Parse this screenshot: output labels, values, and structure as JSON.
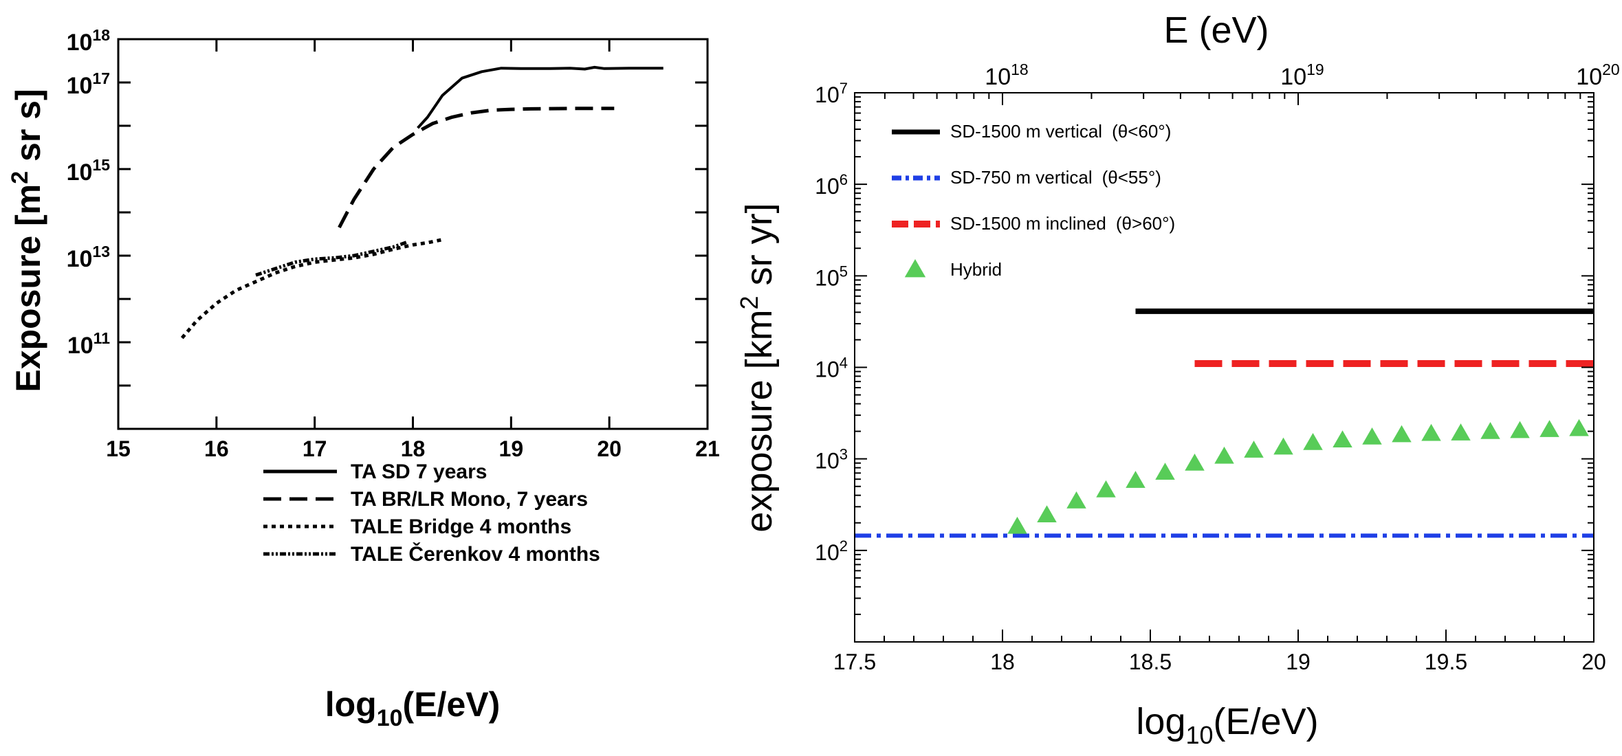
{
  "chart_data": [
    {
      "type": "line",
      "xlabel": "log",
      "xlabel_sub": "10",
      "xlabel_tail": "(E/eV)",
      "ylabel": "Exposure [m",
      "ylabel_sup": "2",
      "ylabel_tail": " sr s]",
      "x_scale": "linear",
      "y_scale": "log",
      "xlim": [
        15,
        21
      ],
      "ylim_exp": [
        9,
        18
      ],
      "x_ticks": [
        "15",
        "16",
        "17",
        "18",
        "19",
        "20",
        "21"
      ],
      "y_tick_labels": [
        {
          "exp": 18,
          "base": "10",
          "sup": "18"
        },
        {
          "exp": 17,
          "base": "10",
          "sup": "17"
        },
        {
          "exp": 15,
          "base": "10",
          "sup": "15"
        },
        {
          "exp": 13,
          "base": "10",
          "sup": "13"
        },
        {
          "exp": 11,
          "base": "10",
          "sup": "11"
        }
      ],
      "legend_position": "bottom-right",
      "series": [
        {
          "name": "TA SD 7 years",
          "style": "solid",
          "points": [
            [
              18.05,
              15.95
            ],
            [
              18.15,
              16.2
            ],
            [
              18.3,
              16.7
            ],
            [
              18.5,
              17.1
            ],
            [
              18.7,
              17.25
            ],
            [
              18.9,
              17.33
            ],
            [
              19.1,
              17.32
            ],
            [
              19.4,
              17.32
            ],
            [
              19.6,
              17.33
            ],
            [
              19.75,
              17.31
            ],
            [
              19.85,
              17.35
            ],
            [
              19.95,
              17.32
            ],
            [
              20.2,
              17.33
            ],
            [
              20.55,
              17.33
            ]
          ]
        },
        {
          "name": "TA BR/LR Mono, 7 years",
          "style": "dashed",
          "points": [
            [
              17.25,
              13.65
            ],
            [
              17.4,
              14.3
            ],
            [
              17.6,
              15.0
            ],
            [
              17.8,
              15.5
            ],
            [
              18.0,
              15.8
            ],
            [
              18.2,
              16.05
            ],
            [
              18.4,
              16.2
            ],
            [
              18.6,
              16.3
            ],
            [
              18.8,
              16.36
            ],
            [
              19.0,
              16.38
            ],
            [
              19.2,
              16.39
            ],
            [
              19.6,
              16.4
            ],
            [
              20.05,
              16.4
            ]
          ]
        },
        {
          "name": "TALE Bridge 4 months",
          "style": "dotted",
          "points": [
            [
              15.65,
              11.1
            ],
            [
              15.8,
              11.5
            ],
            [
              16.0,
              11.9
            ],
            [
              16.2,
              12.2
            ],
            [
              16.4,
              12.4
            ],
            [
              16.6,
              12.6
            ],
            [
              16.8,
              12.75
            ],
            [
              17.0,
              12.85
            ],
            [
              17.2,
              12.9
            ],
            [
              17.4,
              12.95
            ],
            [
              17.6,
              13.03
            ],
            [
              17.8,
              13.15
            ],
            [
              18.0,
              13.25
            ],
            [
              18.15,
              13.3
            ],
            [
              18.3,
              13.37
            ]
          ]
        },
        {
          "name": "TALE  Čerenkov 4 months",
          "style": "dash-dot-dot",
          "points": [
            [
              16.4,
              12.55
            ],
            [
              16.6,
              12.7
            ],
            [
              16.8,
              12.85
            ],
            [
              17.0,
              12.92
            ],
            [
              17.2,
              12.95
            ],
            [
              17.4,
              13.0
            ],
            [
              17.6,
              13.1
            ],
            [
              17.8,
              13.2
            ],
            [
              17.95,
              13.32
            ]
          ]
        }
      ]
    },
    {
      "type": "line",
      "top_axis_label": "E (eV)",
      "top_ticks": [
        {
          "at": 18,
          "base": "10",
          "sup": "18"
        },
        {
          "at": 19,
          "base": "10",
          "sup": "19"
        },
        {
          "at": 20,
          "base": "10",
          "sup": "20"
        }
      ],
      "xlabel": "log",
      "xlabel_sub": "10",
      "xlabel_tail": "(E/eV)",
      "ylabel": "exposure [km",
      "ylabel_sup": "2",
      "ylabel_tail": " sr yr]",
      "x_scale": "linear",
      "y_scale": "log",
      "xlim": [
        17.5,
        20
      ],
      "ylim_exp": [
        1,
        7
      ],
      "x_ticks": [
        "17.5",
        "18",
        "18.5",
        "19",
        "19.5",
        "20"
      ],
      "y_tick_labels": [
        {
          "exp": 7,
          "base": "10",
          "sup": "7"
        },
        {
          "exp": 6,
          "base": "10",
          "sup": "6"
        },
        {
          "exp": 5,
          "base": "10",
          "sup": "5"
        },
        {
          "exp": 4,
          "base": "10",
          "sup": "4"
        },
        {
          "exp": 3,
          "base": "10",
          "sup": "3"
        },
        {
          "exp": 2,
          "base": "10",
          "sup": "2"
        }
      ],
      "legend_position": "top-left",
      "series": [
        {
          "name": "SD-1500 m vertical",
          "cond": "(θ<60°)",
          "style": "solid",
          "color": "#000000",
          "x": [
            18.45,
            20.0
          ],
          "value": 41000
        },
        {
          "name": "SD-750 m vertical",
          "cond": "(θ<55°)",
          "style": "dash-dot",
          "color": "#1f3fe6",
          "x": [
            17.5,
            20.0
          ],
          "value": 145
        },
        {
          "name": "SD-1500 m inclined",
          "cond": "(θ>60°)",
          "style": "dashed",
          "color": "#ee2222",
          "x": [
            18.65,
            20.0
          ],
          "value": 11000
        },
        {
          "name": "Hybrid",
          "style": "triangles",
          "color": "#58cc58",
          "x": [
            18.05,
            18.15,
            18.25,
            18.35,
            18.45,
            18.55,
            18.65,
            18.75,
            18.85,
            18.95,
            19.05,
            19.15,
            19.25,
            19.35,
            19.45,
            19.55,
            19.65,
            19.75,
            19.85,
            19.95
          ],
          "values": [
            180,
            240,
            340,
            450,
            570,
            700,
            880,
            1050,
            1220,
            1320,
            1480,
            1580,
            1700,
            1800,
            1860,
            1880,
            1950,
            2000,
            2050,
            2100
          ]
        }
      ]
    }
  ]
}
